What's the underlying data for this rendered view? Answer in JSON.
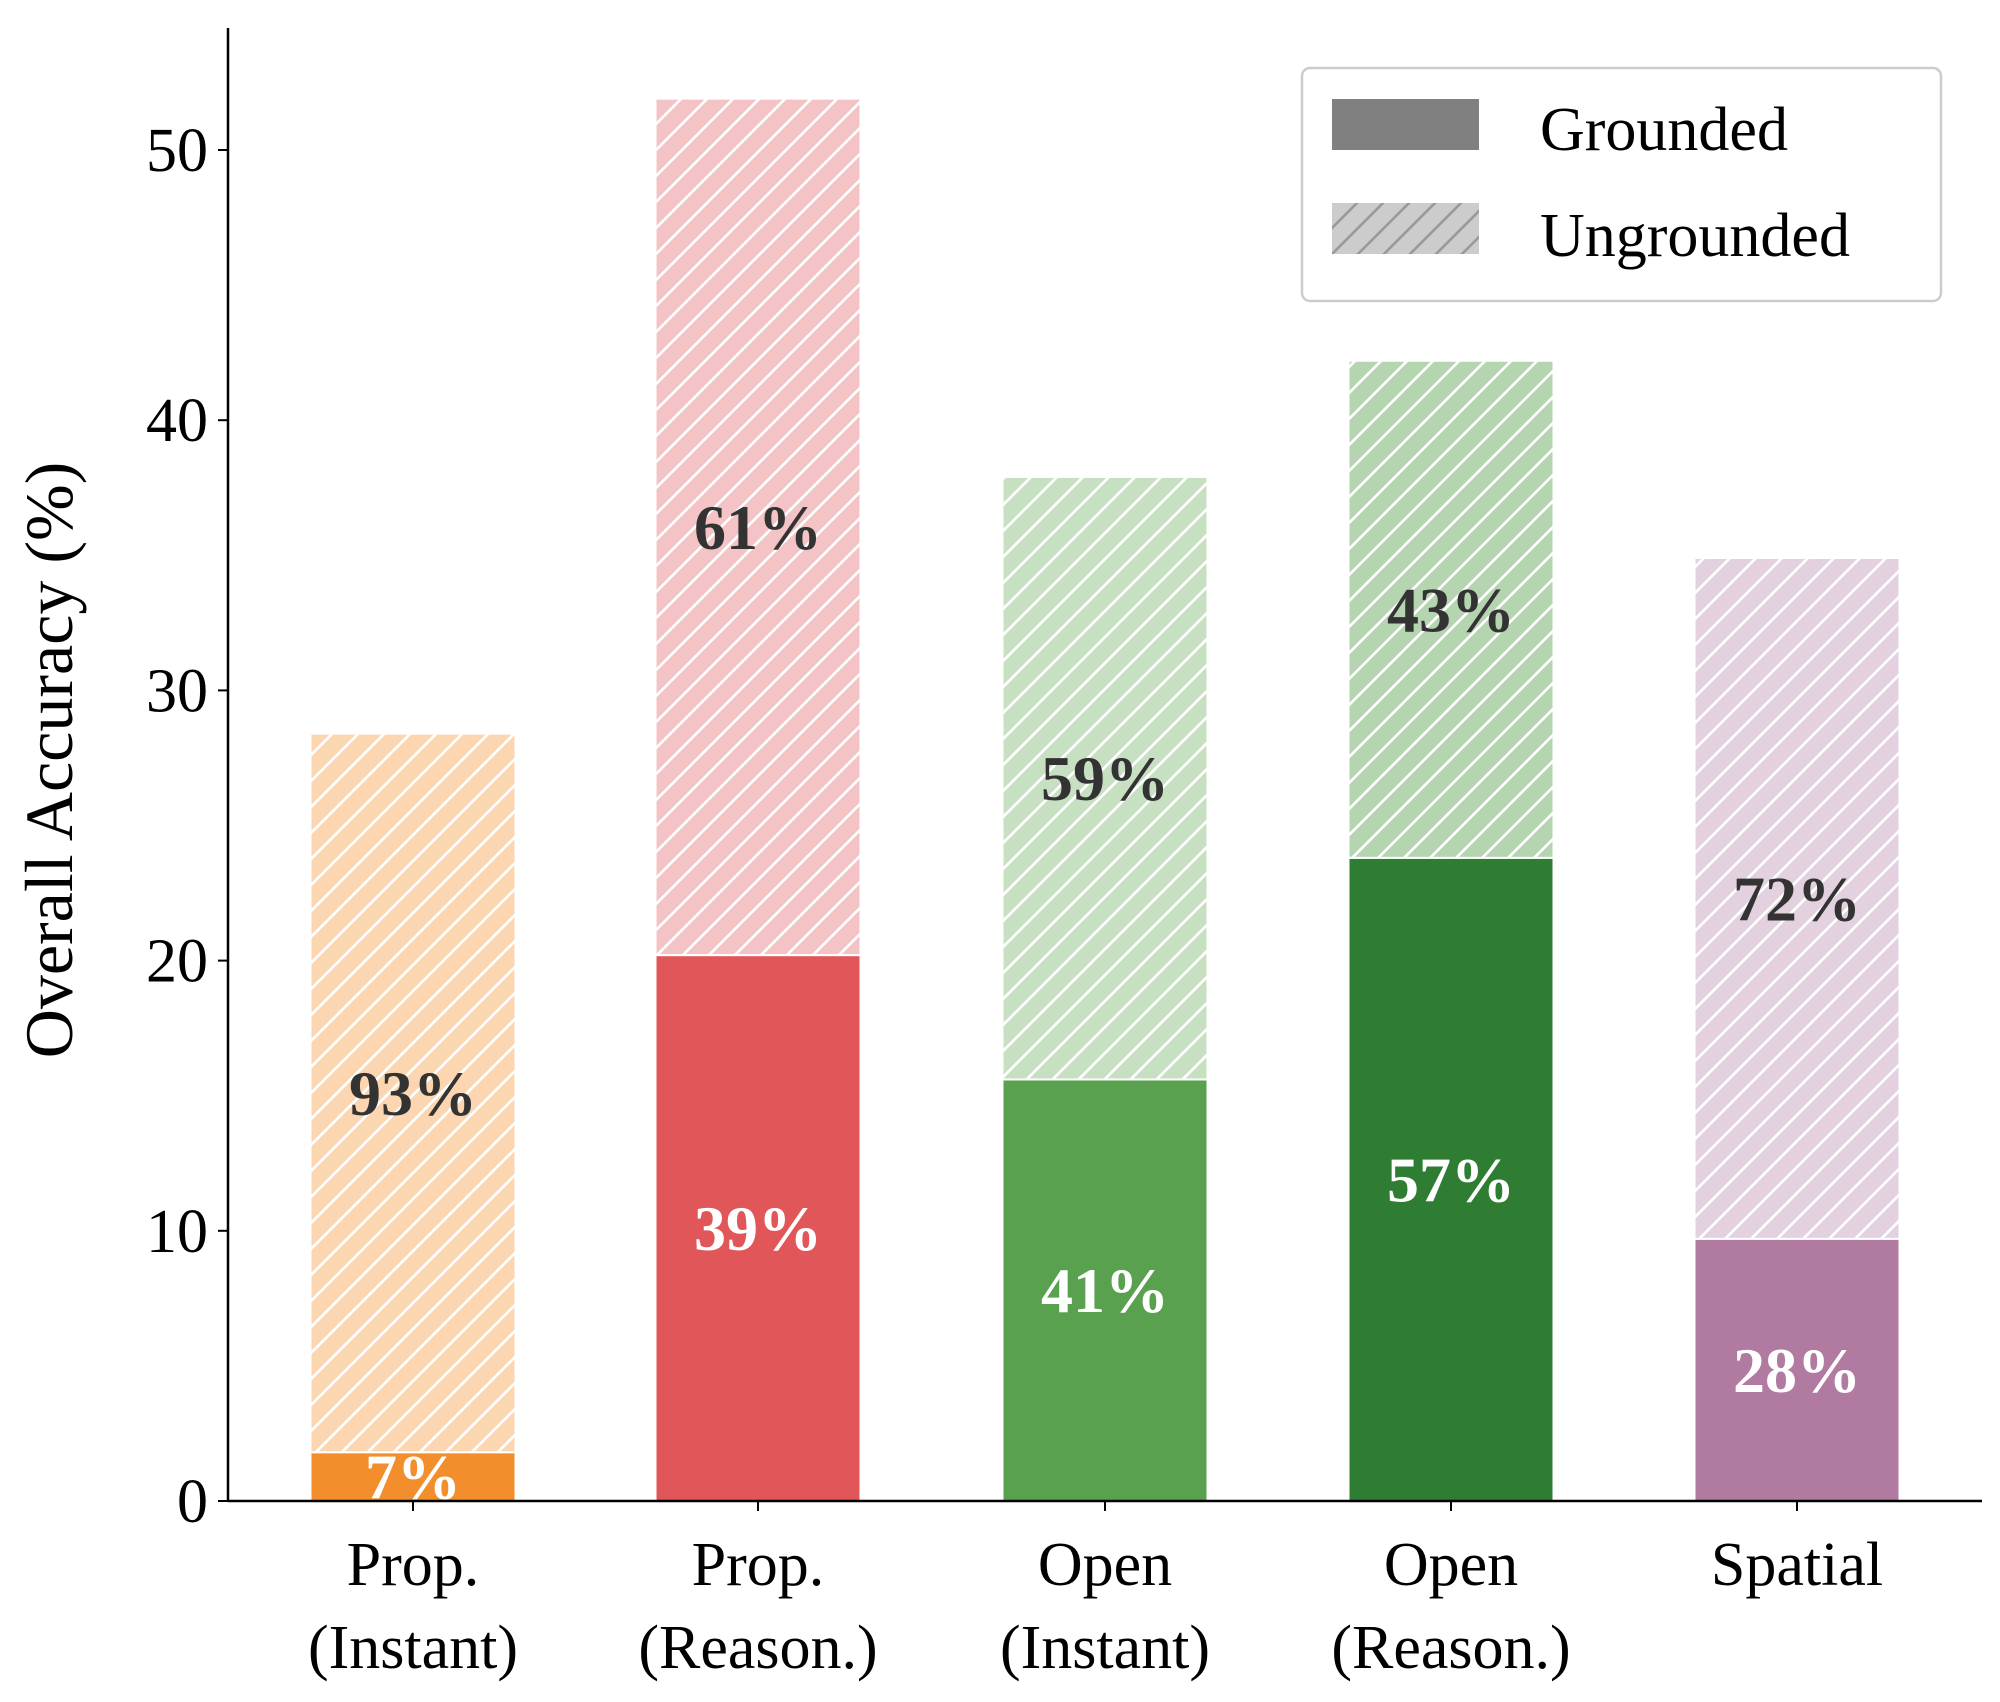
{
  "chart_data": {
    "type": "bar",
    "stacked": true,
    "title": "",
    "xlabel": "",
    "ylabel": "Overall Accuracy (%)",
    "ylim": [
      0,
      54.5
    ],
    "yticks": [
      0,
      10,
      20,
      30,
      40,
      50
    ],
    "grid": false,
    "legend_placement": "top-right",
    "categories": [
      [
        "Prop.",
        "(Instant)"
      ],
      [
        "Prop.",
        "(Reason.)"
      ],
      [
        "Open",
        "(Instant)"
      ],
      [
        "Open",
        "(Reason.)"
      ],
      [
        "Spatial"
      ]
    ],
    "series": [
      {
        "name": "Grounded",
        "values": [
          1.8,
          20.2,
          15.6,
          23.8,
          9.7
        ],
        "labels": [
          "7%",
          "39%",
          "41%",
          "57%",
          "28%"
        ],
        "legend_color": "#808080"
      },
      {
        "name": "Ungrounded",
        "values": [
          26.6,
          31.7,
          22.3,
          18.4,
          25.2
        ],
        "labels": [
          "93%",
          "61%",
          "59%",
          "43%",
          "72%"
        ],
        "hatched": true,
        "legend_color": "#cccccc"
      }
    ],
    "colors": {
      "grounded": [
        "#f28e2b",
        "#e15759",
        "#59a14f",
        "#2e7d32",
        "#b07aa1"
      ],
      "ungrounded": [
        "#fcd5b1",
        "#f4c3c5",
        "#c6e0c1",
        "#b5d5b1",
        "#e3d1df"
      ]
    }
  }
}
